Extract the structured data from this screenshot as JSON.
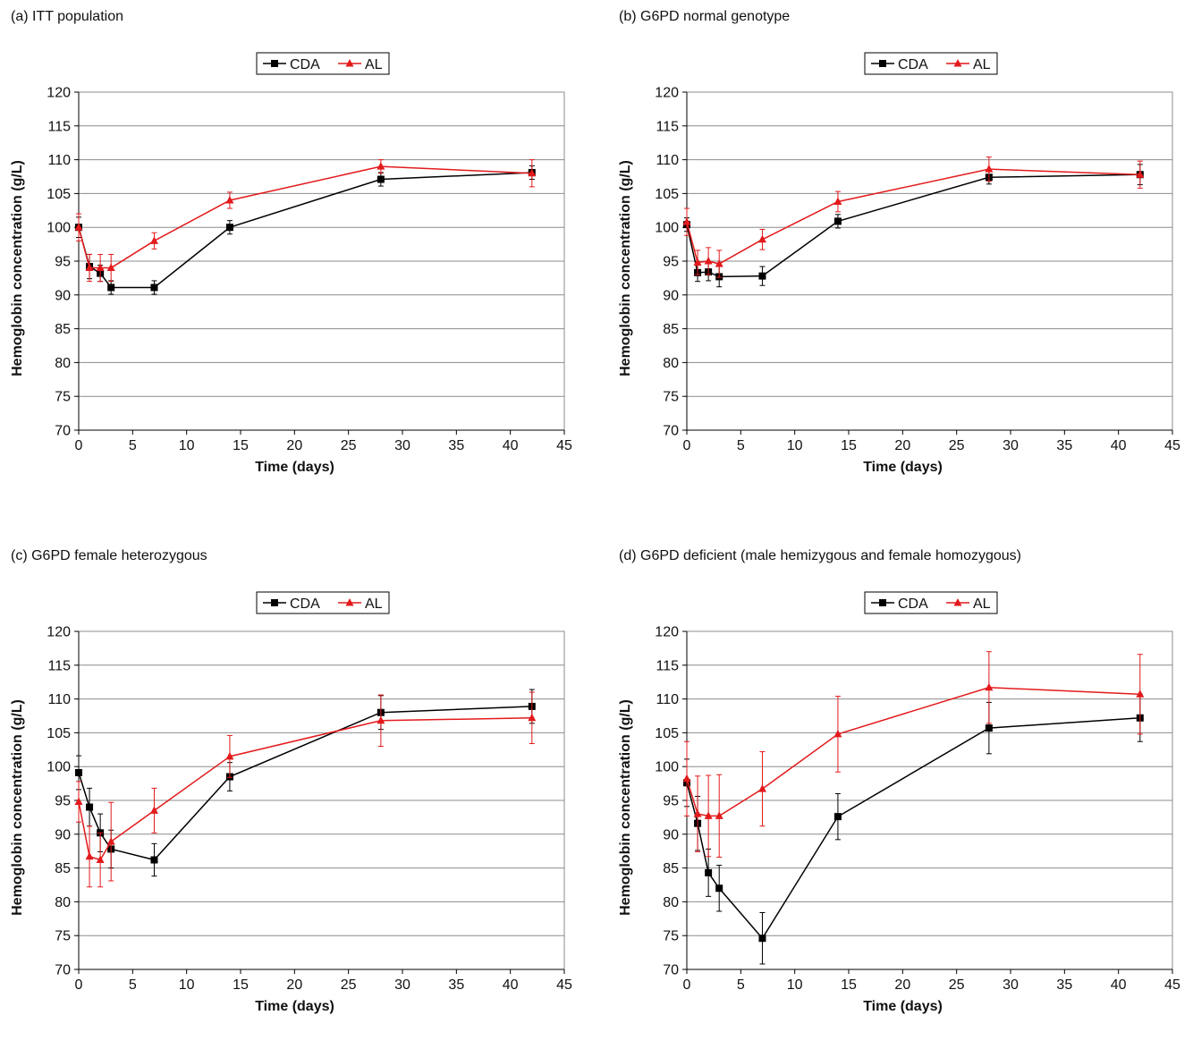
{
  "chart_data": [
    {
      "type": "line",
      "title": "(a) ITT population",
      "xlabel": "Time (days)",
      "ylabel": "Hemoglobin concentration (g/L)",
      "xlim": [
        0,
        45
      ],
      "ylim": [
        70,
        120
      ],
      "xticks": [
        0,
        5,
        10,
        15,
        20,
        25,
        30,
        35,
        40,
        45
      ],
      "yticks": [
        70,
        75,
        80,
        85,
        90,
        95,
        100,
        105,
        110,
        115,
        120
      ],
      "grid": "horizontal",
      "legend_position": "top-center",
      "x": [
        0,
        1,
        2,
        3,
        7,
        14,
        28,
        42
      ],
      "series": [
        {
          "name": "CDA",
          "color": "#000000",
          "marker": "square",
          "values": [
            100,
            94.2,
            93.2,
            91.1,
            91.1,
            100,
            107.1,
            108.1
          ],
          "errors": [
            1.5,
            1.8,
            1.2,
            1.0,
            1.0,
            1.0,
            1.0,
            1.0
          ]
        },
        {
          "name": "AL",
          "color": "#e31a1c",
          "marker": "triangle",
          "values": [
            100,
            94.0,
            94.0,
            94.0,
            98.0,
            104.0,
            109.0,
            108.0
          ],
          "errors": [
            2.0,
            2.0,
            2.0,
            2.0,
            1.2,
            1.2,
            1.0,
            2.0
          ]
        }
      ]
    },
    {
      "type": "line",
      "title": "(b) G6PD normal genotype",
      "xlabel": "Time (days)",
      "ylabel": "Hemoglobin concentration (g/L)",
      "xlim": [
        0,
        45
      ],
      "ylim": [
        70,
        120
      ],
      "xticks": [
        0,
        5,
        10,
        15,
        20,
        25,
        30,
        35,
        40,
        45
      ],
      "yticks": [
        70,
        75,
        80,
        85,
        90,
        95,
        100,
        105,
        110,
        115,
        120
      ],
      "grid": "horizontal",
      "legend_position": "top-center",
      "x": [
        0,
        1,
        2,
        3,
        7,
        14,
        28,
        42
      ],
      "series": [
        {
          "name": "CDA",
          "color": "#000000",
          "marker": "square",
          "values": [
            100.4,
            93.3,
            93.4,
            92.7,
            92.8,
            100.9,
            107.4,
            107.8
          ],
          "errors": [
            1.0,
            1.3,
            1.3,
            1.5,
            1.4,
            1.0,
            1.0,
            1.5
          ]
        },
        {
          "name": "AL",
          "color": "#e31a1c",
          "marker": "triangle",
          "values": [
            100.8,
            94.8,
            95.0,
            94.6,
            98.2,
            103.8,
            108.6,
            107.8
          ],
          "errors": [
            2.0,
            1.8,
            2.0,
            2.0,
            1.5,
            1.5,
            1.8,
            2.0
          ]
        }
      ]
    },
    {
      "type": "line",
      "title": "(c) G6PD female heterozygous",
      "xlabel": "Time (days)",
      "ylabel": "Hemoglobin concentration (g/L)",
      "xlim": [
        0,
        45
      ],
      "ylim": [
        70,
        120
      ],
      "xticks": [
        0,
        5,
        10,
        15,
        20,
        25,
        30,
        35,
        40,
        45
      ],
      "yticks": [
        70,
        75,
        80,
        85,
        90,
        95,
        100,
        105,
        110,
        115,
        120
      ],
      "grid": "horizontal",
      "legend_position": "top-center",
      "x": [
        0,
        1,
        2,
        3,
        7,
        14,
        28,
        42
      ],
      "series": [
        {
          "name": "CDA",
          "color": "#000000",
          "marker": "square",
          "values": [
            99.1,
            94.0,
            90.2,
            87.8,
            86.2,
            98.5,
            108.0,
            108.9
          ],
          "errors": [
            2.5,
            2.8,
            2.8,
            2.8,
            2.4,
            2.1,
            2.5,
            2.5
          ]
        },
        {
          "name": "AL",
          "color": "#e31a1c",
          "marker": "triangle",
          "values": [
            94.8,
            86.7,
            86.2,
            88.9,
            93.5,
            101.5,
            106.8,
            107.2
          ],
          "errors": [
            3.0,
            4.5,
            4.0,
            5.8,
            3.3,
            3.1,
            3.8,
            3.8
          ]
        }
      ]
    },
    {
      "type": "line",
      "title": "(d) G6PD deficient (male hemizygous and female homozygous)",
      "xlabel": "Time (days)",
      "ylabel": "Hemoglobin concentration (g/L)",
      "xlim": [
        0,
        45
      ],
      "ylim": [
        70,
        120
      ],
      "xticks": [
        0,
        5,
        10,
        15,
        20,
        25,
        30,
        35,
        40,
        45
      ],
      "yticks": [
        70,
        75,
        80,
        85,
        90,
        95,
        100,
        105,
        110,
        115,
        120
      ],
      "grid": "horizontal",
      "legend_position": "top-center",
      "x": [
        0,
        1,
        2,
        3,
        7,
        14,
        28,
        42
      ],
      "series": [
        {
          "name": "CDA",
          "color": "#000000",
          "marker": "square",
          "values": [
            97.6,
            91.6,
            84.3,
            82.0,
            74.6,
            92.6,
            105.7,
            107.2
          ],
          "errors": [
            3.5,
            4.0,
            3.5,
            3.4,
            3.8,
            3.4,
            3.8,
            3.5
          ]
        },
        {
          "name": "AL",
          "color": "#e31a1c",
          "marker": "triangle",
          "values": [
            98.2,
            93.0,
            92.7,
            92.7,
            96.7,
            104.8,
            111.7,
            110.7
          ],
          "errors": [
            5.5,
            5.6,
            6.0,
            6.1,
            5.5,
            5.6,
            5.3,
            5.9
          ]
        }
      ]
    }
  ]
}
